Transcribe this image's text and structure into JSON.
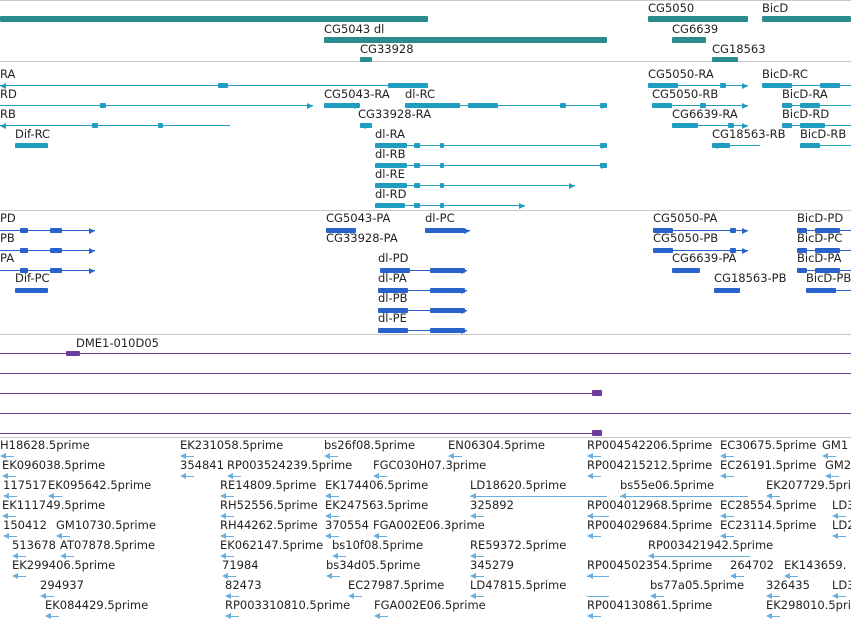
{
  "colors": {
    "gene": "#2a8c8c",
    "transcript": "#1f9dc0",
    "protein": "#2a62cc",
    "clone": "#6a3d9a",
    "est": "#6aaede",
    "divider": "#c8c8c8"
  },
  "tracks": {
    "genes": {
      "labels": [
        {
          "text": "CG5043 dl"
        },
        {
          "text": "CG33928"
        },
        {
          "text": "CG5050"
        },
        {
          "text": "BicD"
        },
        {
          "text": "CG6639"
        },
        {
          "text": "CG18563"
        }
      ]
    },
    "transcripts": {
      "labels": [
        {
          "text": "RA"
        },
        {
          "text": "RD"
        },
        {
          "text": "RB"
        },
        {
          "text": "Dif-RC"
        },
        {
          "text": "CG5043-RA"
        },
        {
          "text": "dl-RC"
        },
        {
          "text": "CG33928-RA"
        },
        {
          "text": "dl-RA"
        },
        {
          "text": "dl-RB"
        },
        {
          "text": "dl-RE"
        },
        {
          "text": "dl-RD"
        },
        {
          "text": "CG5050-RA"
        },
        {
          "text": "CG5050-RB"
        },
        {
          "text": "CG6639-RA"
        },
        {
          "text": "CG18563-RB"
        },
        {
          "text": "BicD-RC"
        },
        {
          "text": "BicD-RA"
        },
        {
          "text": "BicD-RD"
        },
        {
          "text": "BicD-RB"
        }
      ]
    },
    "proteins": {
      "labels": [
        {
          "text": "PD"
        },
        {
          "text": "PB"
        },
        {
          "text": "PA"
        },
        {
          "text": "Dif-PC"
        },
        {
          "text": "CG5043-PA"
        },
        {
          "text": "dl-PC"
        },
        {
          "text": "CG33928-PA"
        },
        {
          "text": "dl-PD"
        },
        {
          "text": "dl-PA"
        },
        {
          "text": "dl-PB"
        },
        {
          "text": "dl-PE"
        },
        {
          "text": "CG5050-PA"
        },
        {
          "text": "CG5050-PB"
        },
        {
          "text": "CG6639-PA"
        },
        {
          "text": "CG18563-PB"
        },
        {
          "text": "BicD-PD"
        },
        {
          "text": "BicD-PC"
        },
        {
          "text": "BicD-PA"
        },
        {
          "text": "BicD-PB"
        }
      ]
    },
    "clones": {
      "labels": [
        {
          "text": "DME1-010D05"
        }
      ]
    },
    "ests": {
      "labels": [
        {
          "text": "H18628.5prime"
        },
        {
          "text": "EK231058.5prime"
        },
        {
          "text": "bs26f08.5prime"
        },
        {
          "text": "EN06304.5prime"
        },
        {
          "text": "RP004542206.5prime"
        },
        {
          "text": "EC30675.5prime"
        },
        {
          "text": "GM1"
        },
        {
          "text": "EK096038.5prime"
        },
        {
          "text": "354841"
        },
        {
          "text": "RP003524239.5prime"
        },
        {
          "text": "FGC030H07.3prime"
        },
        {
          "text": "RP004215212.5prime"
        },
        {
          "text": "EC26191.5prime"
        },
        {
          "text": "GM2"
        },
        {
          "text": "117517"
        },
        {
          "text": "EK095642.5prime"
        },
        {
          "text": "RE14809.5prime"
        },
        {
          "text": "EK174406.5prime"
        },
        {
          "text": "LD18620.5prime"
        },
        {
          "text": "bs55e06.5prime"
        },
        {
          "text": "EK207729.5prime"
        },
        {
          "text": "EK111749.5prime"
        },
        {
          "text": "RH52556.5prime"
        },
        {
          "text": "EK247563.5prime"
        },
        {
          "text": "325892"
        },
        {
          "text": "RP004012968.5prime"
        },
        {
          "text": "EC28554.5prime"
        },
        {
          "text": "LD3"
        },
        {
          "text": "150412"
        },
        {
          "text": "GM10730.5prime"
        },
        {
          "text": "RH44262.5prime"
        },
        {
          "text": "370554"
        },
        {
          "text": "FGA002E06.3prime"
        },
        {
          "text": "RP004029684.5prime"
        },
        {
          "text": "EC23114.5prime"
        },
        {
          "text": "LD2"
        },
        {
          "text": "513678"
        },
        {
          "text": "AT07878.5prime"
        },
        {
          "text": "EK062147.5prime"
        },
        {
          "text": "bs10f08.5prime"
        },
        {
          "text": "RE59372.5prime"
        },
        {
          "text": "RP003421942.5prime"
        },
        {
          "text": "EK299406.5prime"
        },
        {
          "text": "71984"
        },
        {
          "text": "bs34d05.5prime"
        },
        {
          "text": "345279"
        },
        {
          "text": "RP004502354.5prime"
        },
        {
          "text": "264702"
        },
        {
          "text": "EK143659."
        },
        {
          "text": "294937"
        },
        {
          "text": "82473"
        },
        {
          "text": "EC27987.5prime"
        },
        {
          "text": "LD47815.5prime"
        },
        {
          "text": "bs77a05.5prime"
        },
        {
          "text": "326435"
        },
        {
          "text": "LD3"
        },
        {
          "text": "EK084429.5prime"
        },
        {
          "text": "RP003310810.5prime"
        },
        {
          "text": "FGA002E06.5prime"
        },
        {
          "text": "RP004130861.5prime"
        },
        {
          "text": "EK298010.5prime"
        }
      ]
    }
  }
}
